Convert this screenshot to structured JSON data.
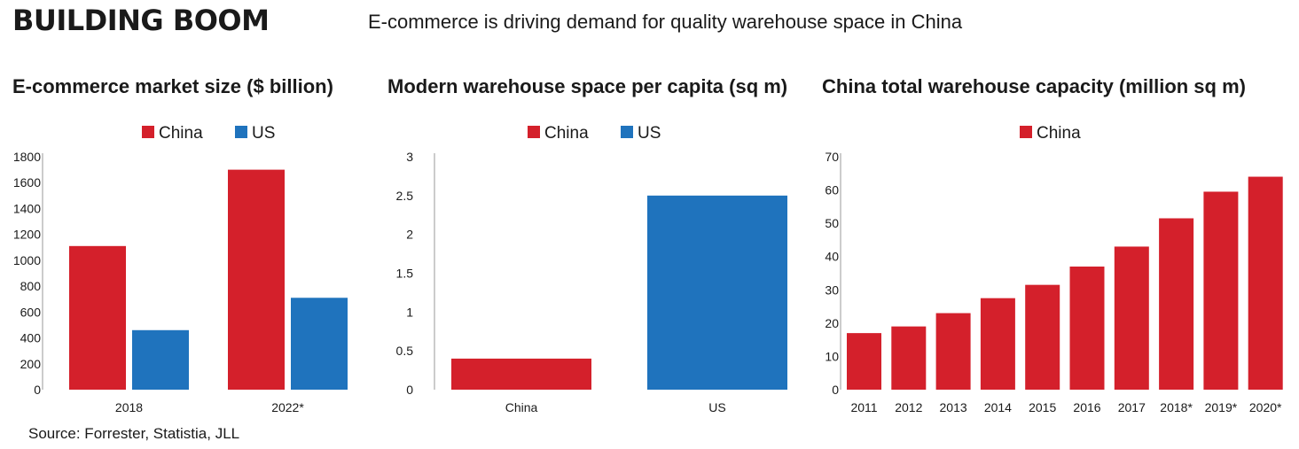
{
  "header": {
    "title": "BUILDING BOOM",
    "subtitle": "E-commerce is driving demand for quality warehouse space in China"
  },
  "source": "Source: Forrester, Statistia, JLL",
  "colors": {
    "china": "#d4202b",
    "us": "#1f73bd"
  },
  "chart_data": [
    {
      "type": "bar",
      "title": "E-commerce market size ($ billion)",
      "categories": [
        "2018",
        "2022*"
      ],
      "series": [
        {
          "name": "China",
          "values": [
            1110,
            1700
          ]
        },
        {
          "name": "US",
          "values": [
            460,
            710
          ]
        }
      ],
      "ylim": [
        0,
        1800
      ],
      "yticks": [
        "0",
        "200",
        "400",
        "600",
        "800",
        "1000",
        "1200",
        "1400",
        "1600",
        "1800"
      ],
      "xlabel": "",
      "ylabel": "",
      "grid": false,
      "legend": "top-center"
    },
    {
      "type": "bar",
      "title": "Modern warehouse space per capita (sq m)",
      "categories": [
        "China",
        "US"
      ],
      "series": [
        {
          "name": "China",
          "values": [
            0.4,
            null
          ]
        },
        {
          "name": "US",
          "values": [
            null,
            2.5
          ]
        }
      ],
      "ylim": [
        0,
        3
      ],
      "yticks": [
        "0",
        "0.5",
        "1",
        "1.5",
        "2",
        "2.5",
        "3"
      ],
      "xlabel": "",
      "ylabel": "",
      "grid": false,
      "legend": "top-center"
    },
    {
      "type": "bar",
      "title": "China total warehouse capacity (million sq m)",
      "categories": [
        "2011",
        "2012",
        "2013",
        "2014",
        "2015",
        "2016",
        "2017",
        "2018*",
        "2019*",
        "2020*"
      ],
      "series": [
        {
          "name": "China",
          "values": [
            17,
            19,
            23,
            27.5,
            31.5,
            37,
            43,
            51.5,
            59.5,
            64
          ]
        }
      ],
      "ylim": [
        0,
        70
      ],
      "yticks": [
        "0",
        "10",
        "20",
        "30",
        "40",
        "50",
        "60",
        "70"
      ],
      "xlabel": "",
      "ylabel": "",
      "grid": false,
      "legend": "top-center"
    }
  ]
}
